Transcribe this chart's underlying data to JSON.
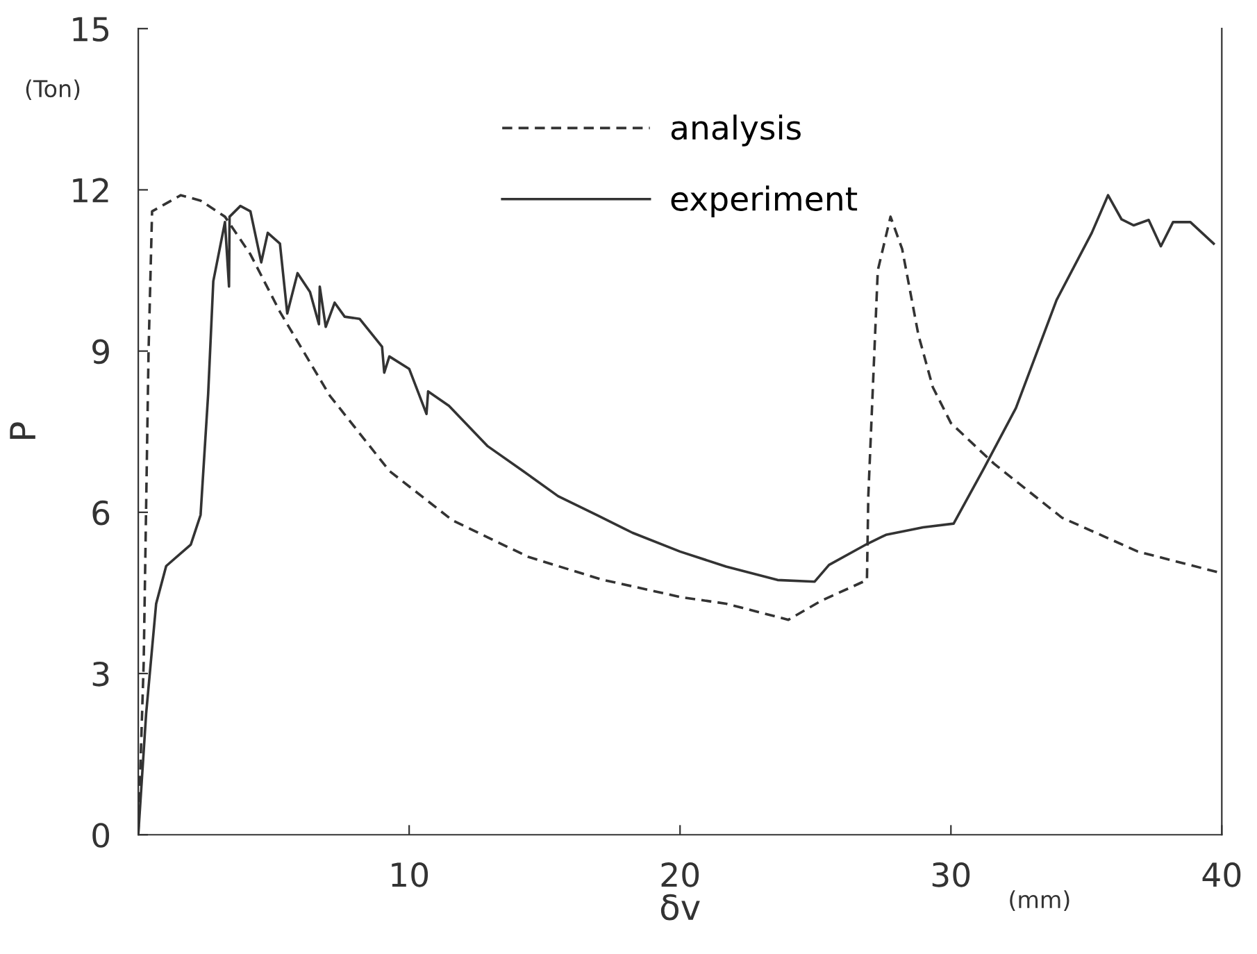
{
  "chart_data": {
    "type": "line",
    "xlabel": "δv",
    "ylabel": "P",
    "annotations": [
      "(Ton)",
      "(mm)"
    ],
    "series": [
      {
        "name": "analysis",
        "color": "#333333",
        "line_style": "dashed",
        "x": [
          0,
          0.2,
          0.38,
          0.51,
          1.57,
          2.3,
          3.2,
          4.14,
          5.23,
          7.07,
          9.27,
          11.6,
          14.4,
          17.1,
          20.05,
          21.7,
          24.0,
          25.2,
          26.9,
          26.95,
          27.3,
          27.77,
          28.2,
          28.8,
          29.33,
          30.0,
          31.6,
          34.1,
          36.9,
          39.9
        ],
        "values": [
          0,
          3.2,
          9.0,
          11.6,
          11.9,
          11.8,
          11.5,
          10.8,
          9.73,
          8.17,
          6.77,
          5.85,
          5.17,
          4.75,
          4.42,
          4.3,
          4.0,
          4.35,
          4.74,
          6.3,
          10.5,
          11.5,
          10.9,
          9.3,
          8.33,
          7.66,
          6.9,
          5.9,
          5.27,
          4.88
        ]
      },
      {
        "name": "experiment",
        "color": "#333333",
        "line_style": "solid",
        "x": [
          0,
          0.29,
          0.66,
          1.03,
          1.94,
          2.3,
          2.58,
          2.77,
          3.2,
          3.35,
          3.37,
          3.77,
          4.14,
          4.54,
          4.78,
          5.23,
          5.5,
          5.88,
          6.34,
          6.67,
          6.7,
          6.92,
          7.25,
          7.62,
          8.17,
          9.0,
          9.08,
          9.27,
          10.0,
          10.64,
          10.7,
          11.47,
          12.9,
          14.2,
          15.5,
          16.96,
          18.24,
          20.0,
          21.7,
          23.6,
          24.97,
          25.5,
          26.9,
          27.6,
          28.97,
          30.1,
          31.2,
          32.4,
          33.9,
          35.2,
          35.8,
          36.3,
          36.75,
          37.3,
          37.75,
          38.2,
          38.84,
          39.7
        ],
        "values": [
          0,
          2.25,
          4.3,
          5.0,
          5.4,
          5.95,
          8.2,
          10.3,
          11.4,
          10.2,
          11.5,
          11.7,
          11.6,
          10.65,
          11.2,
          11.0,
          9.7,
          10.45,
          10.1,
          9.5,
          10.2,
          9.45,
          9.9,
          9.64,
          9.6,
          9.08,
          8.6,
          8.9,
          8.67,
          7.83,
          8.25,
          7.98,
          7.23,
          6.77,
          6.3,
          5.94,
          5.62,
          5.27,
          4.99,
          4.74,
          4.71,
          5.02,
          5.41,
          5.58,
          5.72,
          5.79,
          6.8,
          7.94,
          9.95,
          11.2,
          11.9,
          11.45,
          11.34,
          11.44,
          10.95,
          11.4,
          11.4,
          11.0
        ]
      }
    ],
    "xlim": [
      0,
      40
    ],
    "ylim": [
      0,
      15
    ],
    "xticks": [
      {
        "value": 0,
        "label": null
      },
      10,
      20,
      30,
      40
    ],
    "yticks": [
      0,
      3,
      6,
      9,
      12,
      15
    ],
    "grid": false,
    "legend": "top",
    "marker": "none"
  }
}
